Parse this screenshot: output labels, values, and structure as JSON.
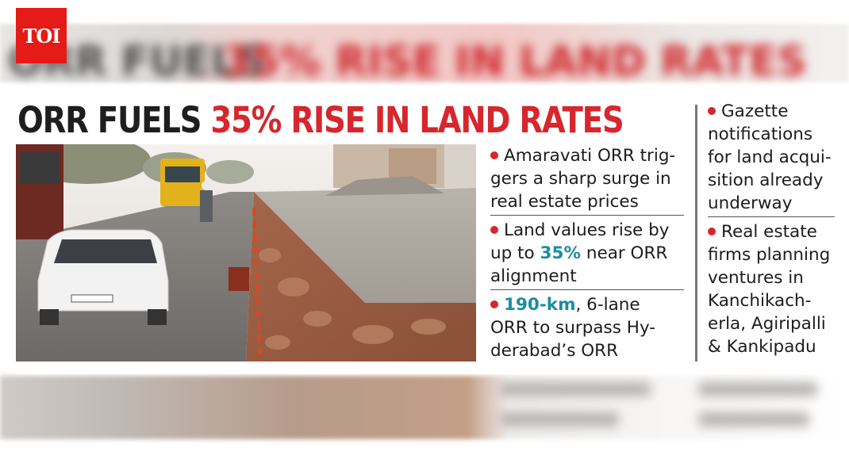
{
  "logo": {
    "text": "TOI"
  },
  "headline": {
    "part1": "ORR FUELS",
    "part2": "35% RISE IN LAND RATES"
  },
  "bullets_mid": [
    {
      "lines": [
        "Amaravati ORR trig-",
        "gers a sharp surge in",
        "real estate prices"
      ]
    },
    {
      "lines_pre": [
        "Land values rise by"
      ],
      "line2_pre": "up to ",
      "highlight": "35%",
      "line2_post": " near ORR",
      "lines_post": [
        "alignment"
      ]
    },
    {
      "highlight": "190-km",
      "line1_post": ", 6-lane",
      "lines_post": [
        "ORR to surpass Hy-",
        "derabad’s ORR"
      ]
    }
  ],
  "bullets_right": [
    {
      "lines": [
        "Gazette",
        "notifications",
        "for land acqui-",
        "sition already",
        "underway"
      ]
    },
    {
      "lines": [
        "Real estate",
        "firms planning",
        "ventures in",
        "Kanchikach-",
        "erla, Agiripalli",
        "& Kankipadu"
      ]
    }
  ],
  "colors": {
    "accent_red": "#d6262e",
    "highlight_teal": "#1c8da0",
    "logo_red": "#e41b17"
  }
}
